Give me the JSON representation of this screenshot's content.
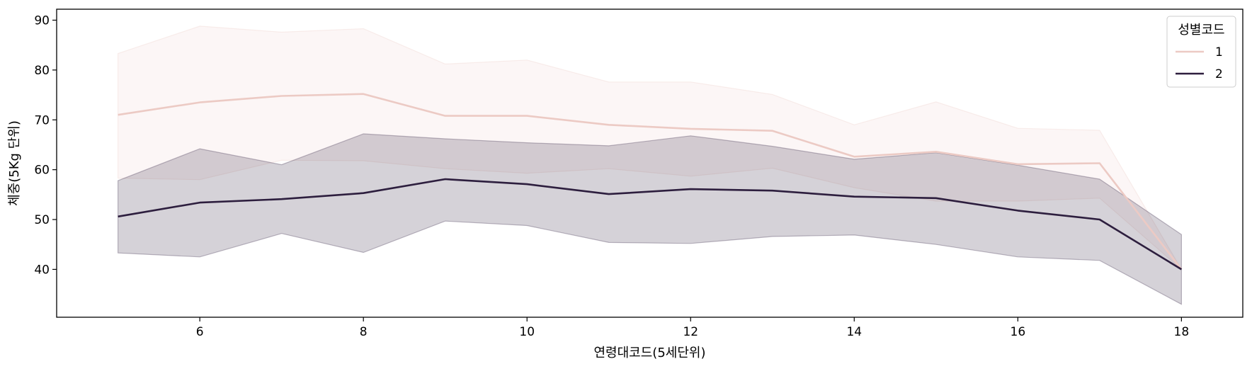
{
  "colors": {
    "series_1": "#eccac4",
    "series_2": "#2d1e3e",
    "axis": "#000000",
    "legend_border": "#cccccc"
  },
  "chart_data": {
    "type": "line",
    "xlabel": "연령대코드(5세단위)",
    "ylabel": "체중(5Kg 단위)",
    "xlim": [
      4.25,
      18.75
    ],
    "ylim": [
      30.4,
      92.2
    ],
    "x_ticks": [
      6,
      8,
      10,
      12,
      14,
      16,
      18
    ],
    "y_ticks": [
      40,
      50,
      60,
      70,
      80,
      90
    ],
    "grid": false,
    "legend": {
      "title": "성별코드",
      "placement": "top-right",
      "entries": [
        "1",
        "2"
      ]
    },
    "series": [
      {
        "name": "1",
        "x": [
          5,
          6,
          7,
          8,
          9,
          10,
          11,
          12,
          13,
          14,
          15,
          16,
          17,
          18
        ],
        "values": [
          71.0,
          73.5,
          74.8,
          75.2,
          70.8,
          70.8,
          69.0,
          68.2,
          67.8,
          62.6,
          63.6,
          61.1,
          61.3,
          40.0
        ],
        "ci_upper": [
          83.3,
          88.8,
          87.6,
          88.3,
          81.2,
          82.0,
          77.6,
          77.6,
          75.1,
          69.0,
          73.6,
          68.3,
          67.9,
          40.0
        ],
        "ci_lower": [
          58.3,
          58.0,
          61.9,
          61.8,
          60.2,
          59.3,
          60.2,
          58.7,
          60.3,
          56.4,
          53.7,
          53.7,
          54.3,
          40.0
        ]
      },
      {
        "name": "2",
        "x": [
          5,
          6,
          7,
          8,
          9,
          10,
          11,
          12,
          13,
          14,
          15,
          16,
          17,
          18
        ],
        "values": [
          50.6,
          53.4,
          54.1,
          55.3,
          58.1,
          57.1,
          55.1,
          56.1,
          55.8,
          54.6,
          54.3,
          51.8,
          50.0,
          40.0
        ],
        "ci_upper": [
          57.8,
          64.2,
          61.0,
          67.2,
          66.2,
          65.4,
          64.8,
          66.8,
          64.7,
          62.1,
          63.4,
          60.9,
          58.1,
          47.0
        ],
        "ci_lower": [
          43.3,
          42.5,
          47.2,
          43.4,
          49.7,
          48.8,
          45.4,
          45.2,
          46.6,
          46.9,
          45.0,
          42.5,
          41.8,
          33.0
        ]
      }
    ]
  }
}
